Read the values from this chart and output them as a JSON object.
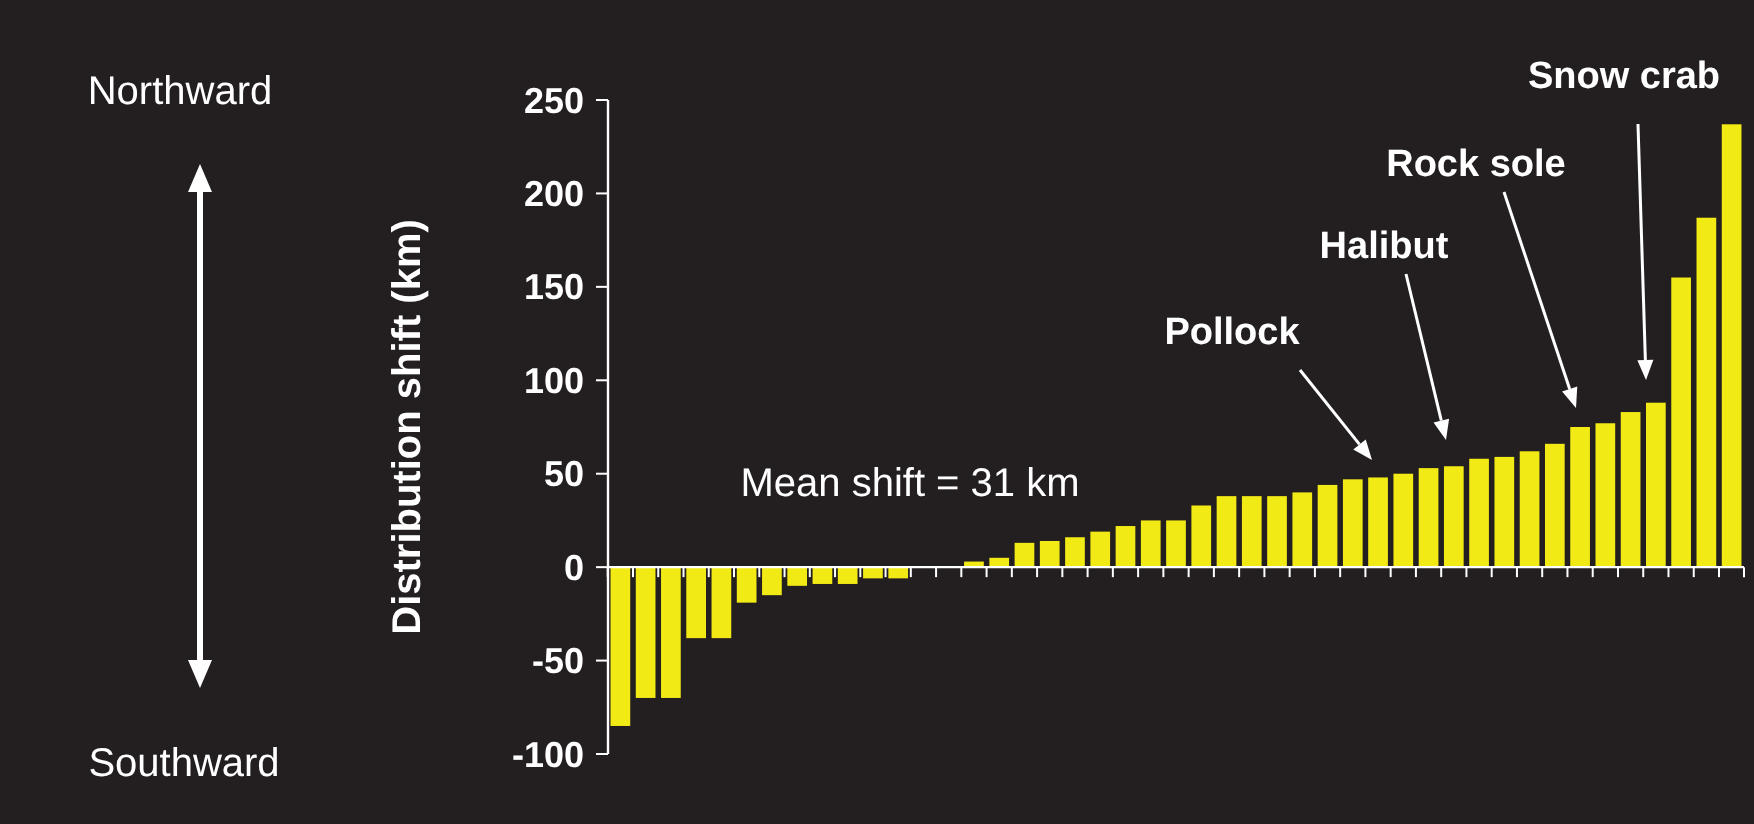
{
  "chart_data": {
    "type": "bar",
    "ylabel": "Distribution shift (km)",
    "categories": [
      null,
      null,
      null,
      null,
      null,
      null,
      null,
      null,
      null,
      null,
      null,
      null,
      null,
      null,
      null,
      null,
      null,
      null,
      null,
      null,
      null,
      null,
      null,
      null,
      null,
      null,
      null,
      null,
      null,
      null,
      null,
      null,
      null,
      null,
      null,
      null,
      null,
      null,
      null,
      null,
      null,
      null,
      null,
      null,
      null
    ],
    "values": [
      -85,
      -70,
      -70,
      -38,
      -38,
      -19,
      -15,
      -10,
      -9,
      -9,
      -6,
      -6,
      0,
      0,
      3,
      5,
      13,
      14,
      16,
      19,
      22,
      25,
      25,
      33,
      38,
      38,
      38,
      40,
      44,
      47,
      48,
      50,
      53,
      54,
      58,
      59,
      62,
      66,
      75,
      77,
      83,
      88,
      155,
      187,
      237
    ],
    "color": "#f2ea14",
    "ylim": [
      -100,
      250
    ],
    "yticks": [
      -100,
      -50,
      0,
      50,
      100,
      150,
      200,
      250
    ],
    "annotations": [
      "Northward",
      "Southward",
      "Mean shift = 31 km",
      "Pollock",
      "Halibut",
      "Rock sole",
      "Snow crab"
    ]
  }
}
